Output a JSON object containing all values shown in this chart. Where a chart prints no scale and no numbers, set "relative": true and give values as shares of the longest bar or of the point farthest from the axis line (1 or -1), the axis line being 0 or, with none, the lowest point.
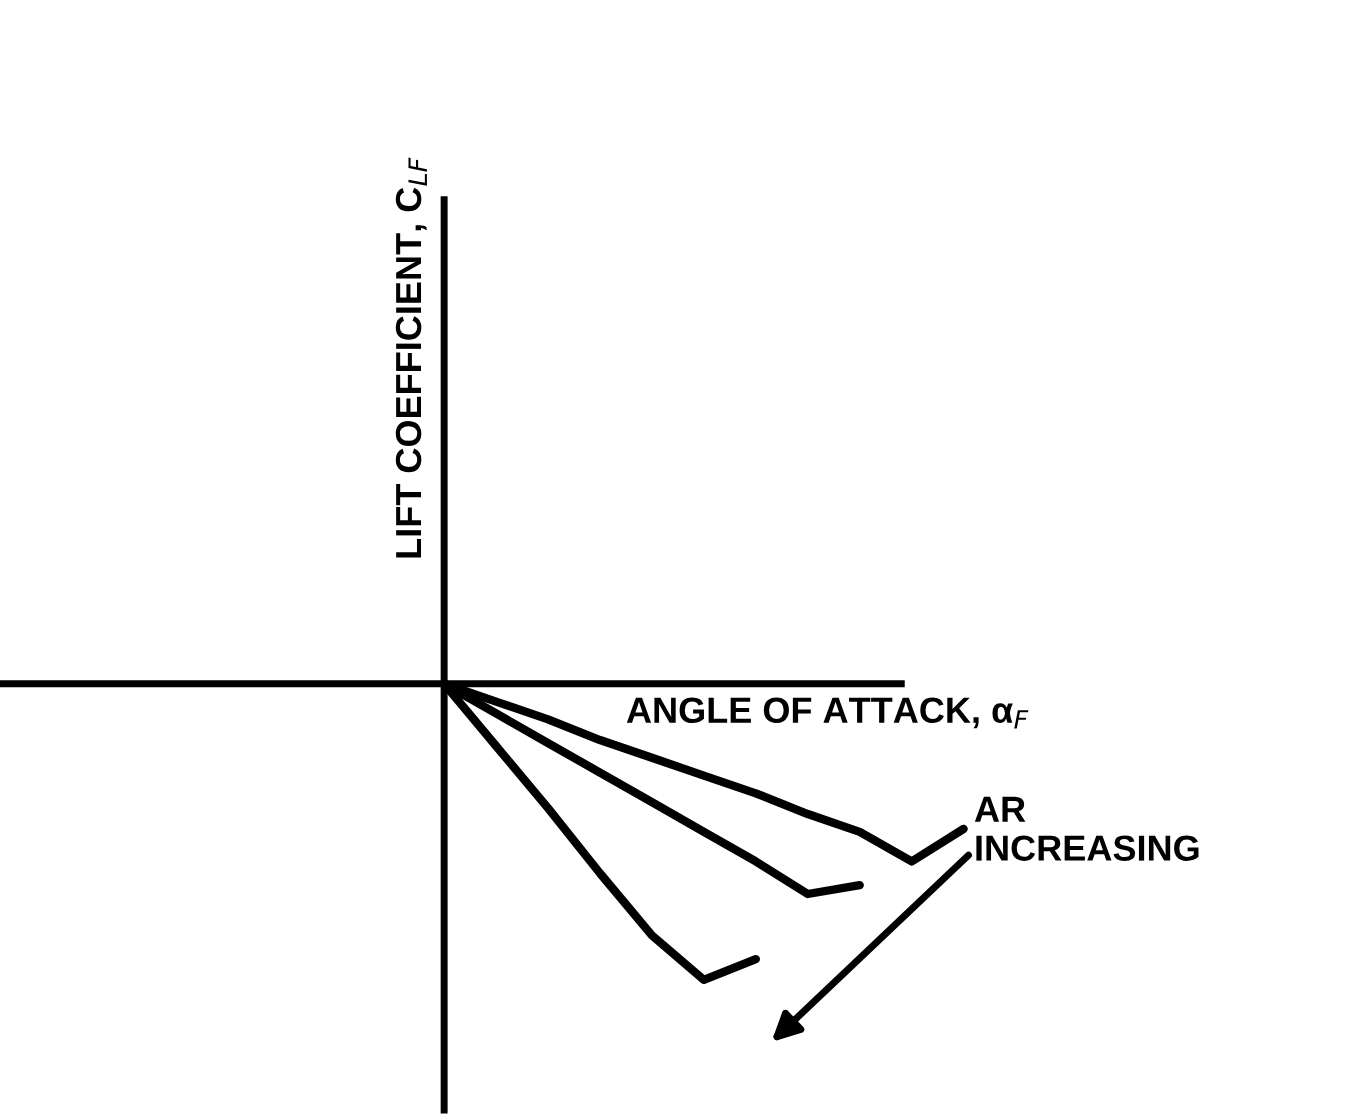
{
  "chart_data": {
    "type": "line",
    "relative": true,
    "xlabel": "ANGLE OF ATTACK, α$_{F}$",
    "ylabel": "LIFT COEFFICIENT, C$_{LF}$",
    "annotations": [
      "AR\nINCREASING"
    ],
    "categories": [
      null,
      null,
      null,
      null,
      null,
      null,
      null,
      null,
      null,
      null,
      null
    ],
    "series": [
      {
        "color": "#000000",
        "values": [
          0,
          -0.21,
          -0.42,
          -0.64,
          -0.85,
          -1.0,
          -0.93,
          null,
          null,
          null,
          null
        ]
      },
      {
        "color": "#000000",
        "values": [
          0,
          -0.1,
          -0.2,
          -0.3,
          -0.4,
          -0.5,
          -0.6,
          -0.71,
          -0.68,
          null,
          null
        ]
      },
      {
        "color": "#000000",
        "values": [
          0,
          -0.06,
          -0.12,
          -0.19,
          -0.25,
          -0.31,
          -0.37,
          -0.44,
          -0.5,
          -0.6,
          -0.49
        ]
      }
    ],
    "legend": false,
    "marker": "none",
    "line_style": "solid"
  }
}
